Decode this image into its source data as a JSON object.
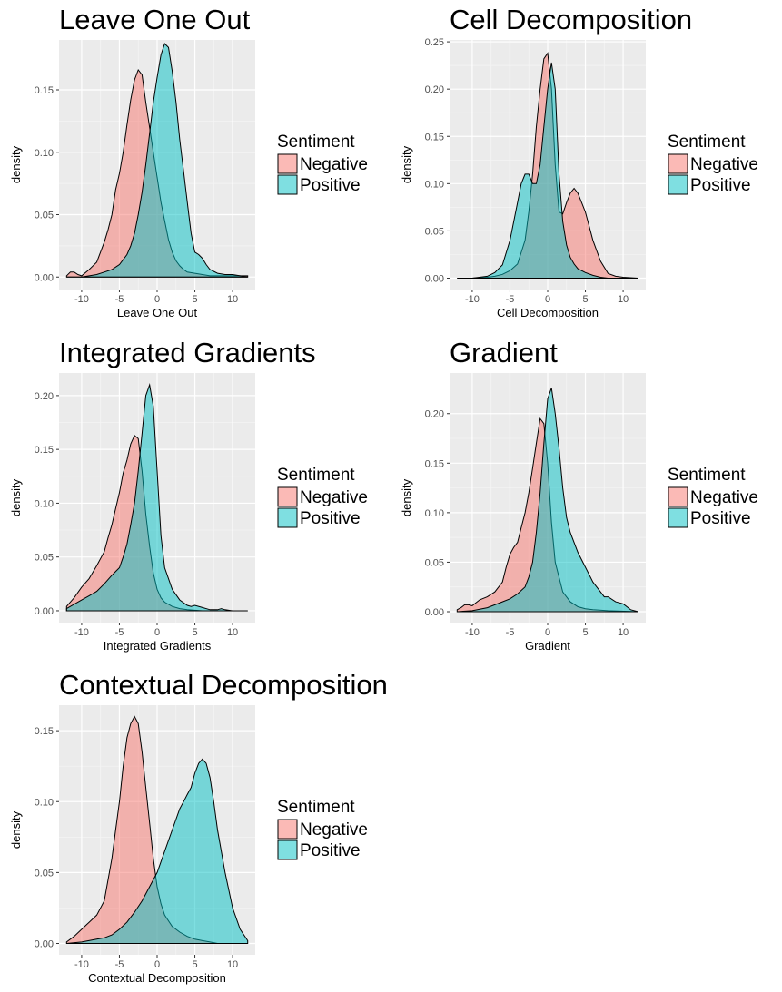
{
  "legend": {
    "title": "Sentiment",
    "items": [
      {
        "label": "Negative",
        "color": "#F8766D"
      },
      {
        "label": "Positive",
        "color": "#00BFC4"
      }
    ]
  },
  "chart_data": [
    {
      "type": "area",
      "title": "Leave One Out",
      "xlabel": "Leave One Out",
      "ylabel": "density",
      "xlim": [
        -13,
        13
      ],
      "ylim": [
        -0.01,
        0.19
      ],
      "xticks": [
        -10,
        -5,
        0,
        5,
        10
      ],
      "yticks": [
        0,
        0.05,
        0.1,
        0.15
      ],
      "ytick_labels": [
        "0.00",
        "0.05",
        "0.10",
        "0.15"
      ],
      "grid": true,
      "legend_position": "right",
      "series": [
        {
          "name": "Negative",
          "x": [
            -12,
            -11.5,
            -11,
            -10.5,
            -10,
            -9,
            -8,
            -7,
            -6.5,
            -6,
            -5.5,
            -5,
            -4.5,
            -4,
            -3.5,
            -3,
            -2.5,
            -2,
            -1.5,
            -1,
            -0.5,
            0,
            0.5,
            1,
            1.5,
            2,
            2.5,
            3,
            3.5,
            4,
            5,
            6,
            7,
            8,
            9,
            10,
            11,
            12
          ],
          "y": [
            0.001,
            0.004,
            0.004,
            0.002,
            0.001,
            0.006,
            0.012,
            0.028,
            0.038,
            0.05,
            0.07,
            0.083,
            0.1,
            0.122,
            0.142,
            0.158,
            0.166,
            0.162,
            0.14,
            0.12,
            0.1,
            0.08,
            0.06,
            0.045,
            0.03,
            0.02,
            0.013,
            0.009,
            0.006,
            0.004,
            0.003,
            0.002,
            0.001,
            0.001,
            0.001,
            0.001,
            0.001,
            0.001
          ]
        },
        {
          "name": "Positive",
          "x": [
            -12,
            -11,
            -10,
            -9,
            -8,
            -7,
            -6,
            -5,
            -4,
            -3.5,
            -3,
            -2.5,
            -2,
            -1.5,
            -1,
            -0.5,
            0,
            0.5,
            1,
            1.5,
            2,
            2.5,
            3,
            3.5,
            4,
            4.5,
            5,
            5.5,
            6,
            6.5,
            7,
            8,
            9,
            10,
            11,
            12
          ],
          "y": [
            0.0,
            0.0,
            0.0,
            0.001,
            0.002,
            0.004,
            0.006,
            0.01,
            0.018,
            0.025,
            0.035,
            0.05,
            0.068,
            0.09,
            0.115,
            0.14,
            0.16,
            0.178,
            0.187,
            0.184,
            0.165,
            0.14,
            0.11,
            0.085,
            0.06,
            0.035,
            0.02,
            0.018,
            0.015,
            0.01,
            0.006,
            0.003,
            0.002,
            0.002,
            0.001,
            0.0
          ]
        }
      ]
    },
    {
      "type": "area",
      "title": "Cell Decomposition",
      "xlabel": "Cell Decomposition",
      "ylabel": "density",
      "xlim": [
        -13,
        13
      ],
      "ylim": [
        -0.012,
        0.252
      ],
      "xticks": [
        -10,
        -5,
        0,
        5,
        10
      ],
      "yticks": [
        0,
        0.05,
        0.1,
        0.15,
        0.2,
        0.25
      ],
      "ytick_labels": [
        "0.00",
        "0.05",
        "0.10",
        "0.15",
        "0.20",
        "0.25"
      ],
      "grid": true,
      "legend_position": "right",
      "series": [
        {
          "name": "Negative",
          "x": [
            -12,
            -10,
            -8,
            -7,
            -6,
            -5,
            -4,
            -3,
            -2.5,
            -2,
            -1.5,
            -1,
            -0.5,
            0,
            0.5,
            1,
            1.5,
            2,
            2.5,
            3,
            3.5,
            4,
            4.5,
            5,
            5.5,
            6,
            7,
            8,
            9,
            10,
            12
          ],
          "y": [
            0.0,
            0.0,
            0.001,
            0.002,
            0.004,
            0.008,
            0.015,
            0.04,
            0.07,
            0.11,
            0.16,
            0.2,
            0.232,
            0.238,
            0.2,
            0.12,
            0.07,
            0.068,
            0.08,
            0.09,
            0.095,
            0.09,
            0.08,
            0.07,
            0.055,
            0.04,
            0.018,
            0.005,
            0.002,
            0.001,
            0.0
          ]
        },
        {
          "name": "Positive",
          "x": [
            -12,
            -10,
            -8,
            -7,
            -6,
            -5,
            -4,
            -3.5,
            -3,
            -2.5,
            -2,
            -1.5,
            -1,
            -0.5,
            0,
            0.5,
            1,
            1.5,
            2,
            2.5,
            3,
            3.5,
            4,
            5,
            6,
            7,
            8,
            10,
            12
          ],
          "y": [
            0.0,
            0.0,
            0.002,
            0.006,
            0.014,
            0.04,
            0.08,
            0.1,
            0.11,
            0.11,
            0.1,
            0.1,
            0.12,
            0.16,
            0.2,
            0.228,
            0.2,
            0.11,
            0.06,
            0.035,
            0.022,
            0.015,
            0.01,
            0.006,
            0.003,
            0.001,
            0.0,
            0.0,
            0.0
          ]
        }
      ]
    },
    {
      "type": "area",
      "title": "Integrated Gradients",
      "xlabel": "Integrated Gradients",
      "ylabel": "density",
      "xlim": [
        -13,
        13
      ],
      "ylim": [
        -0.011,
        0.221
      ],
      "xticks": [
        -10,
        -5,
        0,
        5,
        10
      ],
      "yticks": [
        0,
        0.05,
        0.1,
        0.15,
        0.2
      ],
      "ytick_labels": [
        "0.00",
        "0.05",
        "0.10",
        "0.15",
        "0.20"
      ],
      "grid": true,
      "legend_position": "right",
      "series": [
        {
          "name": "Negative",
          "x": [
            -12,
            -11,
            -10,
            -9,
            -8,
            -7,
            -6.5,
            -6,
            -5.5,
            -5,
            -4.5,
            -4,
            -3.5,
            -3,
            -2.5,
            -2,
            -1.5,
            -1,
            -0.5,
            0,
            0.5,
            1,
            2,
            3,
            4,
            6,
            8,
            10,
            12
          ],
          "y": [
            0.004,
            0.012,
            0.022,
            0.03,
            0.042,
            0.055,
            0.068,
            0.08,
            0.095,
            0.11,
            0.128,
            0.14,
            0.155,
            0.163,
            0.16,
            0.13,
            0.09,
            0.06,
            0.035,
            0.02,
            0.012,
            0.008,
            0.004,
            0.002,
            0.001,
            0.0,
            0.0,
            0.0,
            0.0
          ]
        },
        {
          "name": "Positive",
          "x": [
            -12,
            -11,
            -10,
            -9,
            -8,
            -7,
            -6,
            -5,
            -4.5,
            -4,
            -3.5,
            -3,
            -2.5,
            -2,
            -1.5,
            -1,
            -0.5,
            0,
            0.5,
            1,
            2,
            3,
            4,
            4.5,
            5,
            6,
            7,
            8,
            8.5,
            9,
            10,
            12
          ],
          "y": [
            0.002,
            0.006,
            0.01,
            0.014,
            0.018,
            0.025,
            0.033,
            0.04,
            0.05,
            0.062,
            0.08,
            0.1,
            0.13,
            0.165,
            0.2,
            0.21,
            0.19,
            0.13,
            0.07,
            0.04,
            0.02,
            0.01,
            0.005,
            0.004,
            0.005,
            0.003,
            0.001,
            0.001,
            0.002,
            0.001,
            0.0,
            0.0
          ]
        }
      ]
    },
    {
      "type": "area",
      "title": "Gradient",
      "xlabel": "Gradient",
      "ylabel": "density",
      "xlim": [
        -13,
        13
      ],
      "ylim": [
        -0.011,
        0.241
      ],
      "xticks": [
        -10,
        -5,
        0,
        5,
        10
      ],
      "yticks": [
        0,
        0.05,
        0.1,
        0.15,
        0.2
      ],
      "ytick_labels": [
        "0.00",
        "0.05",
        "0.10",
        "0.15",
        "0.20"
      ],
      "grid": true,
      "legend_position": "right",
      "series": [
        {
          "name": "Negative",
          "x": [
            -12,
            -11.5,
            -11,
            -10.5,
            -10,
            -9,
            -8,
            -7,
            -6,
            -5.5,
            -5,
            -4.5,
            -4,
            -3.5,
            -3,
            -2.5,
            -2,
            -1.5,
            -1,
            -0.5,
            0,
            0.5,
            1,
            2,
            3,
            4,
            5,
            6,
            8,
            12
          ],
          "y": [
            0.002,
            0.004,
            0.007,
            0.007,
            0.006,
            0.012,
            0.015,
            0.02,
            0.03,
            0.045,
            0.058,
            0.065,
            0.07,
            0.085,
            0.1,
            0.12,
            0.145,
            0.17,
            0.195,
            0.19,
            0.15,
            0.09,
            0.05,
            0.02,
            0.01,
            0.005,
            0.003,
            0.002,
            0.001,
            0.0
          ]
        },
        {
          "name": "Positive",
          "x": [
            -12,
            -10,
            -8,
            -7,
            -6,
            -5,
            -4,
            -3,
            -2.5,
            -2,
            -1.5,
            -1,
            -0.5,
            0,
            0.5,
            1,
            1.5,
            2,
            2.5,
            3,
            4,
            5,
            6,
            7,
            7.5,
            8,
            9,
            10,
            11,
            12
          ],
          "y": [
            0.0,
            0.001,
            0.004,
            0.007,
            0.01,
            0.013,
            0.018,
            0.025,
            0.035,
            0.05,
            0.08,
            0.12,
            0.17,
            0.215,
            0.226,
            0.2,
            0.165,
            0.125,
            0.095,
            0.08,
            0.06,
            0.045,
            0.03,
            0.02,
            0.015,
            0.015,
            0.01,
            0.008,
            0.002,
            0.0
          ]
        }
      ]
    },
    {
      "type": "area",
      "title": "Contextual Decomposition",
      "xlabel": "Contextual Decomposition",
      "ylabel": "density",
      "xlim": [
        -13,
        13
      ],
      "ylim": [
        -0.008,
        0.168
      ],
      "xticks": [
        -10,
        -5,
        0,
        5,
        10
      ],
      "yticks": [
        0,
        0.05,
        0.1,
        0.15
      ],
      "ytick_labels": [
        "0.00",
        "0.05",
        "0.10",
        "0.15"
      ],
      "grid": true,
      "legend_position": "right",
      "series": [
        {
          "name": "Negative",
          "x": [
            -12,
            -11,
            -10,
            -9,
            -8,
            -7,
            -6,
            -5.5,
            -5,
            -4.5,
            -4,
            -3.5,
            -3,
            -2.5,
            -2,
            -1.5,
            -1,
            -0.5,
            0,
            0.5,
            1,
            2,
            3,
            4,
            5,
            6,
            7,
            8,
            10,
            12
          ],
          "y": [
            0.001,
            0.005,
            0.01,
            0.015,
            0.02,
            0.03,
            0.06,
            0.08,
            0.1,
            0.125,
            0.145,
            0.155,
            0.16,
            0.155,
            0.135,
            0.11,
            0.085,
            0.06,
            0.04,
            0.028,
            0.02,
            0.012,
            0.008,
            0.005,
            0.003,
            0.002,
            0.001,
            0.0,
            0.0,
            0.0
          ]
        },
        {
          "name": "Positive",
          "x": [
            -12,
            -10,
            -8,
            -7,
            -6,
            -5,
            -4,
            -3,
            -2,
            -1,
            0,
            1,
            2,
            3,
            3.5,
            4,
            4.5,
            5,
            5.5,
            6,
            6.5,
            7,
            7.5,
            8,
            9,
            10,
            11,
            12
          ],
          "y": [
            0.0,
            0.001,
            0.003,
            0.004,
            0.006,
            0.01,
            0.015,
            0.022,
            0.03,
            0.04,
            0.05,
            0.065,
            0.08,
            0.095,
            0.1,
            0.105,
            0.11,
            0.12,
            0.127,
            0.13,
            0.127,
            0.117,
            0.1,
            0.08,
            0.05,
            0.025,
            0.01,
            0.002
          ]
        }
      ]
    }
  ]
}
